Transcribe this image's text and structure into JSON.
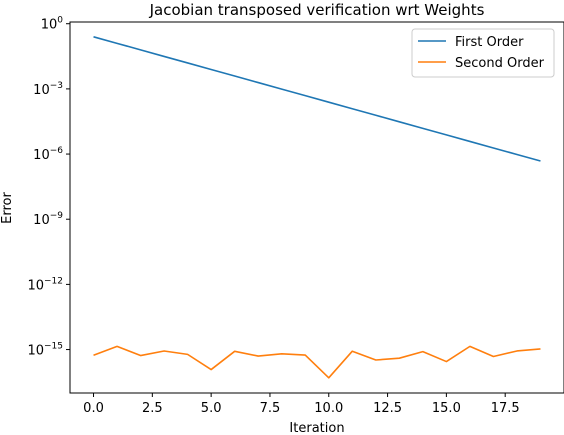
{
  "chart_data": {
    "type": "line",
    "title": "Jacobian transposed verification wrt Weights",
    "xlabel": "Iteration",
    "ylabel": "Error",
    "yscale": "log",
    "xlim": [
      -1,
      20
    ],
    "ylim": [
      1e-17,
      1.2
    ],
    "x": [
      0,
      1,
      2,
      3,
      4,
      5,
      6,
      7,
      8,
      9,
      10,
      11,
      12,
      13,
      14,
      15,
      16,
      17,
      18,
      19
    ],
    "x_ticks": [
      {
        "value": 0.0,
        "label": "0.0"
      },
      {
        "value": 2.5,
        "label": "2.5"
      },
      {
        "value": 5.0,
        "label": "5.0"
      },
      {
        "value": 7.5,
        "label": "7.5"
      },
      {
        "value": 10.0,
        "label": "10.0"
      },
      {
        "value": 12.5,
        "label": "12.5"
      },
      {
        "value": 15.0,
        "label": "15.0"
      },
      {
        "value": 17.5,
        "label": "17.5"
      }
    ],
    "y_ticks": [
      {
        "exp": 0,
        "base": "10",
        "power": "0"
      },
      {
        "exp": -3,
        "base": "10",
        "power": "−3"
      },
      {
        "exp": -6,
        "base": "10",
        "power": "−6"
      },
      {
        "exp": -9,
        "base": "10",
        "power": "−9"
      },
      {
        "exp": -12,
        "base": "10",
        "power": "−12"
      },
      {
        "exp": -15,
        "base": "10",
        "power": "−15"
      }
    ],
    "legend_position": "top-right",
    "series": [
      {
        "name": "First Order",
        "color": "#1f77b4",
        "values": [
          0.25,
          0.125,
          0.0625,
          0.03125,
          0.015625,
          0.0078125,
          0.00390625,
          0.001953125,
          0.0009765625,
          0.00048828125,
          0.000244140625,
          0.0001220703125,
          6.103515625e-05,
          3.0517578125e-05,
          1.52587890625e-05,
          7.62939453125e-06,
          3.814697265625e-06,
          1.9073486328125e-06,
          9.5367431640625e-07,
          4.76837158203125e-07
        ]
      },
      {
        "name": "Second Order",
        "color": "#ff7f0e",
        "values": [
          5.5e-16,
          1.4e-15,
          5.3e-16,
          8.6e-16,
          6e-16,
          1.2e-16,
          8.3e-16,
          5e-16,
          6.4e-16,
          5.6e-16,
          5e-17,
          8.4e-16,
          3.3e-16,
          4e-16,
          8e-16,
          2.8e-16,
          1.4e-15,
          4.8e-16,
          8.6e-16,
          1.07e-15
        ]
      }
    ]
  }
}
